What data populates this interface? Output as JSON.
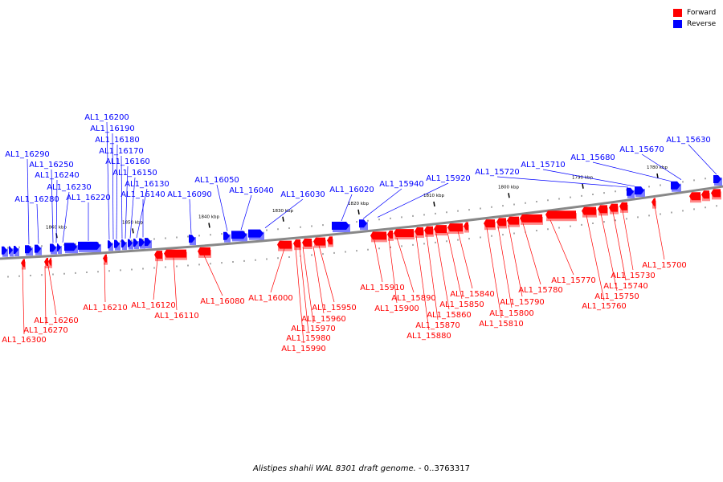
{
  "legend": {
    "forward_label": "Forward",
    "reverse_label": "Reverse",
    "forward_color": "#ff0000",
    "reverse_color": "#0000ff"
  },
  "caption": {
    "organism": "Alistipes shahii WAL 8301 draft genome.",
    "range": " - 0..3763317"
  },
  "ruler": {
    "unit": "kbp",
    "ticks_kbp": [
      1860,
      1850,
      1840,
      1830,
      1820,
      1810,
      1800,
      1790,
      1780
    ]
  },
  "genes_reverse": [
    "AL1_16290",
    "AL1_16280",
    "AL1_16250",
    "AL1_16240",
    "AL1_16230",
    "AL1_16220",
    "AL1_16200",
    "AL1_16190",
    "AL1_16180",
    "AL1_16170",
    "AL1_16160",
    "AL1_16150",
    "AL1_16130",
    "AL1_16140",
    "AL1_16090",
    "AL1_16050",
    "AL1_16040",
    "AL1_16030",
    "AL1_16020",
    "AL1_15940",
    "AL1_15920",
    "AL1_15720",
    "AL1_15710",
    "AL1_15680",
    "AL1_15670",
    "AL1_15630"
  ],
  "genes_forward": [
    "AL1_16300",
    "AL1_16270",
    "AL1_16260",
    "AL1_16210",
    "AL1_16120",
    "AL1_16110",
    "AL1_16080",
    "AL1_16000",
    "AL1_15990",
    "AL1_15980",
    "AL1_15970",
    "AL1_15960",
    "AL1_15950",
    "AL1_15910",
    "AL1_15900",
    "AL1_15890",
    "AL1_15880",
    "AL1_15870",
    "AL1_15860",
    "AL1_15850",
    "AL1_15840",
    "AL1_15810",
    "AL1_15800",
    "AL1_15790",
    "AL1_15780",
    "AL1_15770",
    "AL1_15760",
    "AL1_15750",
    "AL1_15740",
    "AL1_15730",
    "AL1_15700"
  ]
}
